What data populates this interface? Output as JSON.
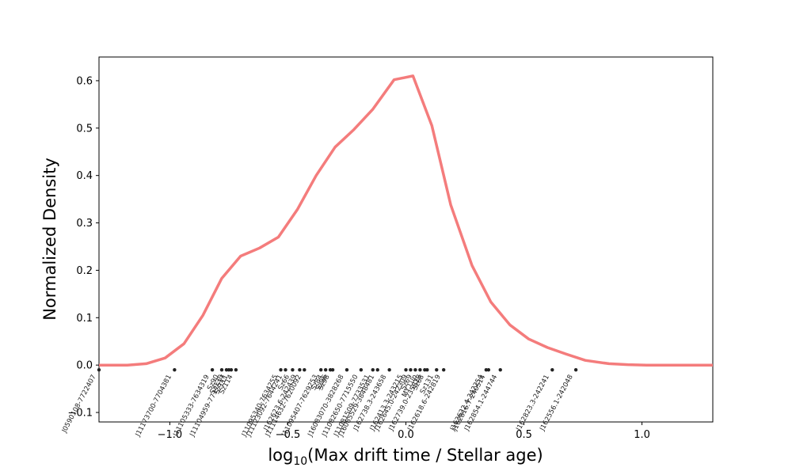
{
  "chart_data": {
    "type": "line",
    "title": "",
    "xlabel": "log10(Max drift time / Stellar age)",
    "xlabel_parts": {
      "prefix": "log",
      "subscript": "10",
      "rest": "(Max drift time / Stellar age)"
    },
    "ylabel": "Normalized Density",
    "xlim": [
      -1.3,
      1.3
    ],
    "ylim": [
      -0.12,
      0.65
    ],
    "xticks": [
      -1.0,
      -0.5,
      0.0,
      0.5,
      1.0
    ],
    "xtick_labels": [
      "−1.0",
      "−0.5",
      "0.0",
      "0.5",
      "1.0"
    ],
    "yticks": [
      -0.1,
      0.0,
      0.1,
      0.2,
      0.3,
      0.4,
      0.5,
      0.6
    ],
    "ytick_labels": [
      "−0.1",
      "0.0",
      "0.1",
      "0.2",
      "0.3",
      "0.4",
      "0.5",
      "0.6"
    ],
    "grid": false,
    "line_color": "#f47c7c",
    "marker_color": "#222222",
    "series": [
      {
        "x": [
          -1.3,
          -1.18,
          -1.1,
          -1.02,
          -0.94,
          -0.86,
          -0.78,
          -0.7,
          -0.62,
          -0.54,
          -0.46,
          -0.38,
          -0.3,
          -0.22,
          -0.14,
          -0.05,
          0.03,
          0.11,
          0.19,
          0.28,
          0.36,
          0.44,
          0.52,
          0.6,
          0.68,
          0.76,
          0.86,
          0.94,
          1.02,
          1.1,
          1.2,
          1.3
        ],
        "y": [
          0.0,
          0.0,
          0.003,
          0.015,
          0.045,
          0.105,
          0.183,
          0.23,
          0.247,
          0.27,
          0.328,
          0.4,
          0.46,
          0.497,
          0.54,
          0.602,
          0.61,
          0.505,
          0.338,
          0.21,
          0.133,
          0.085,
          0.055,
          0.037,
          0.023,
          0.01,
          0.003,
          0.001,
          0.0,
          0.0,
          0.0,
          0.0
        ]
      }
    ],
    "points": [
      {
        "label": "J0590108-7722407",
        "x": -1.3
      },
      {
        "label": "J11173700-7704381",
        "x": -0.98
      },
      {
        "label": "J11105333-7634319",
        "x": -0.82
      },
      {
        "label": "Sz90",
        "x": -0.78
      },
      {
        "label": "Sz130",
        "x": -0.76
      },
      {
        "label": "J11104959-7717517",
        "x": -0.75
      },
      {
        "label": "Sz111",
        "x": -0.74
      },
      {
        "label": "Sz114",
        "x": -0.72
      },
      {
        "label": "J11095340-7634255",
        "x": -0.53
      },
      {
        "label": "J11123092-7644241",
        "x": -0.51
      },
      {
        "label": "Sz66",
        "x": -0.48
      },
      {
        "label": "J162623.6-242439",
        "x": -0.45
      },
      {
        "label": "J11114632-7620092",
        "x": -0.43
      },
      {
        "label": "J11095407-7629253",
        "x": -0.36
      },
      {
        "label": "Sz84",
        "x": -0.34
      },
      {
        "label": "Sz96",
        "x": -0.32
      },
      {
        "label": "Sz98",
        "x": -0.31
      },
      {
        "label": "J16083070-3828268",
        "x": -0.25
      },
      {
        "label": "J11082650-7715550",
        "x": -0.19
      },
      {
        "label": "J11081509-7733531",
        "x": -0.14
      },
      {
        "label": "J16085529-3848481",
        "x": -0.12
      },
      {
        "label": "J162738.3-243658",
        "x": -0.07
      },
      {
        "label": "J162413.3-243215",
        "x": 0.0
      },
      {
        "label": "J162645.0-242309",
        "x": 0.02
      },
      {
        "label": "Sz69",
        "x": 0.04
      },
      {
        "label": "MY Lup",
        "x": 0.06
      },
      {
        "label": "J162739.0-235818",
        "x": 0.08
      },
      {
        "label": "Sz68",
        "x": 0.09
      },
      {
        "label": "Sz131",
        "x": 0.13
      },
      {
        "label": "J162618.6-242819",
        "x": 0.16
      },
      {
        "label": "J162622.4-242254",
        "x": 0.34
      },
      {
        "label": "J162816.7-240514",
        "x": 0.35
      },
      {
        "label": "J162854.1-244744",
        "x": 0.4
      },
      {
        "label": "J162823.3-242241",
        "x": 0.62
      },
      {
        "label": "J162556.1-242048",
        "x": 0.72
      }
    ]
  }
}
